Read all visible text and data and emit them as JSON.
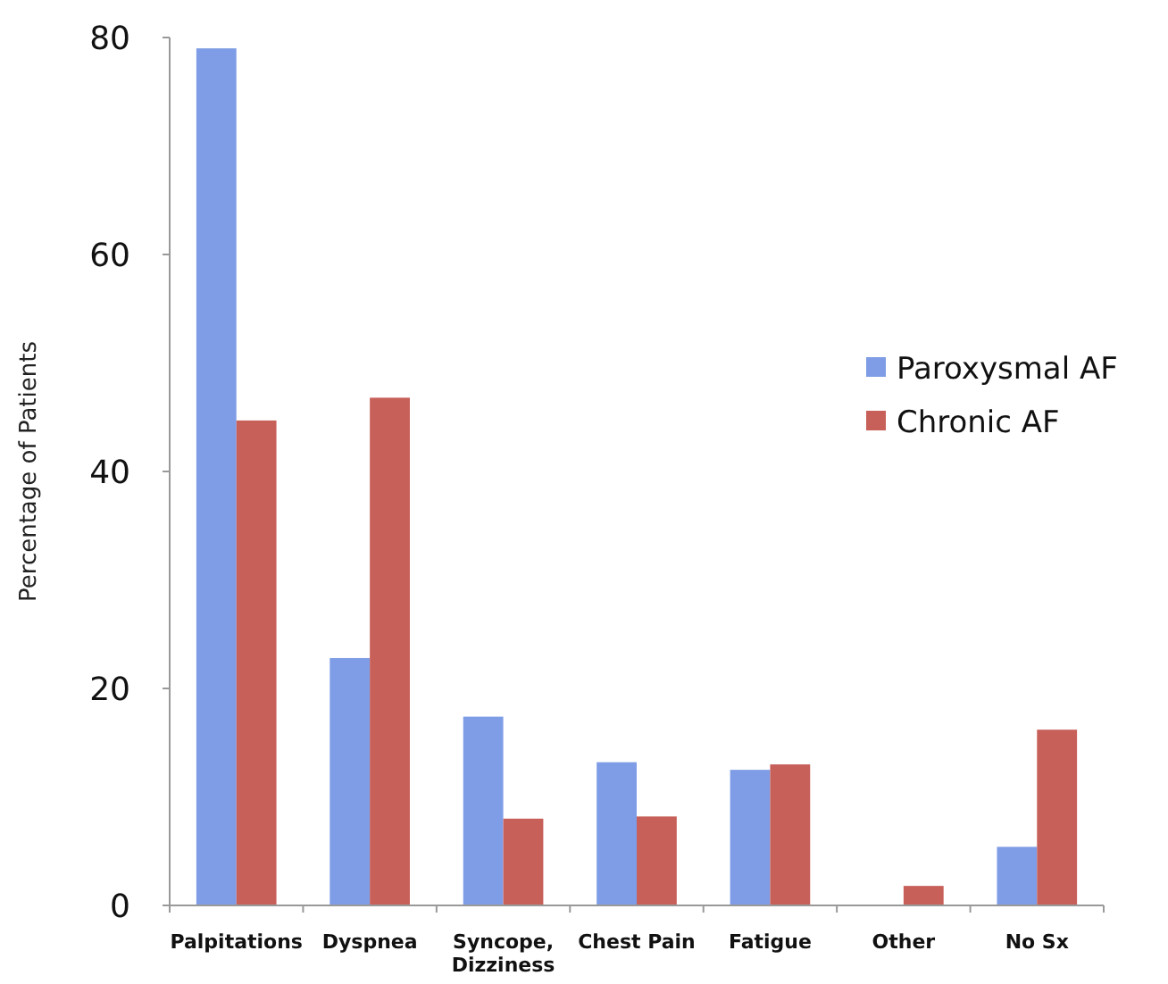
{
  "chart_data": {
    "type": "bar",
    "ylabel": "Percentage of Patients",
    "categories": [
      "Palpitations",
      "Dyspnea",
      "Syncope, Dizziness",
      "Chest Pain",
      "Fatigue",
      "Other",
      "No Sx"
    ],
    "series": [
      {
        "name": "Paroxysmal AF",
        "color": "#7f9de6",
        "values": [
          79,
          22.8,
          17.4,
          13.2,
          12.5,
          0,
          5.4
        ]
      },
      {
        "name": "Chronic AF",
        "color": "#c8605a",
        "values": [
          44.7,
          46.8,
          8,
          8.2,
          13,
          1.8,
          16.2
        ]
      }
    ],
    "ylim": [
      0,
      80
    ],
    "yticks": [
      0,
      20,
      40,
      60,
      80
    ],
    "grid": false,
    "legend": "right"
  }
}
